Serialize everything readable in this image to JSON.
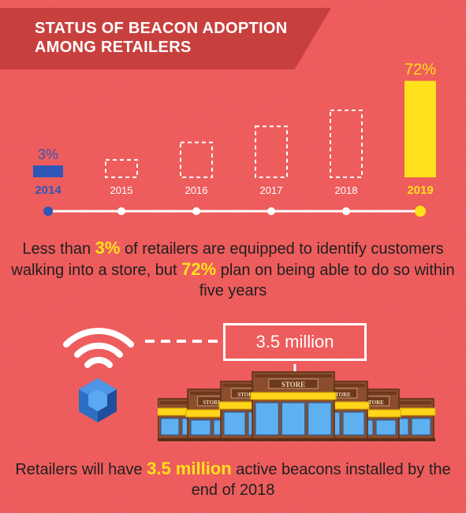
{
  "header": {
    "title": "STATUS OF BEACON ADOPTION AMONG RETAILERS"
  },
  "chart_data": {
    "type": "bar",
    "categories": [
      "2014",
      "2015",
      "2016",
      "2017",
      "2018",
      "2019"
    ],
    "values": [
      3,
      null,
      null,
      null,
      null,
      72
    ],
    "data_labels": [
      "3%",
      "",
      "",
      "",
      "",
      "72%"
    ],
    "ylim": [
      0,
      100
    ],
    "placeholder_bars": [
      13,
      26,
      38,
      50
    ],
    "colors": {
      "actual_2014": "#2f57b8",
      "actual_2019": "#ffe01b",
      "placeholder": "#ffffff",
      "timeline": "#ffffff"
    }
  },
  "adoption_text": {
    "part1": "Less than ",
    "hl1": "3%",
    "part2": " of retailers are equipped to identify customers walking into a store, but ",
    "hl2": "72%",
    "part3": " plan on being able to do so within five years"
  },
  "beacons": {
    "box_label": "3.5 million",
    "store_sign": "STORE",
    "part1": "Retailers will have ",
    "hl": "3.5 million",
    "part2": " active beacons installed by the end of 2018"
  },
  "colors": {
    "background": "#f05b5b",
    "banner": "#c8403e",
    "highlight": "#ffe01b",
    "beacon": "#2d6fc4",
    "store": "#8b4d2c",
    "awning": "#ffd51a"
  }
}
